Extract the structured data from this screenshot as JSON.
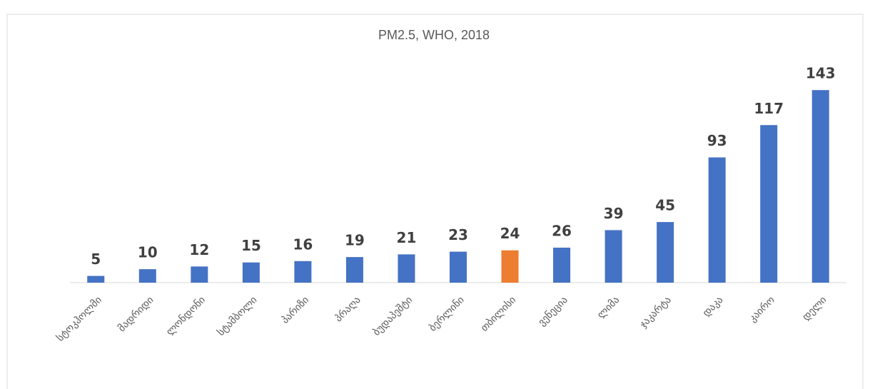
{
  "chart_data": {
    "type": "bar",
    "title": "PM2.5, WHO, 2018",
    "categories": [
      "სტოკჰოლმი",
      "მადრიდი",
      "ლონდონი",
      "სტამბოლი",
      "პარიზი",
      "პრაღა",
      "ბუდაპეშტი",
      "ბერლინი",
      "თბილისი",
      "ვენეცია",
      "ლიმა",
      "ჯაკარტა",
      "დაკა",
      "კაირო",
      "დელი"
    ],
    "values": [
      5,
      10,
      12,
      15,
      16,
      19,
      21,
      23,
      24,
      26,
      39,
      45,
      93,
      117,
      143
    ],
    "colors": [
      "#4472c4",
      "#4472c4",
      "#4472c4",
      "#4472c4",
      "#4472c4",
      "#4472c4",
      "#4472c4",
      "#4472c4",
      "#ed7d31",
      "#4472c4",
      "#4472c4",
      "#4472c4",
      "#4472c4",
      "#4472c4",
      "#4472c4"
    ],
    "ylim": [
      0,
      150
    ]
  }
}
